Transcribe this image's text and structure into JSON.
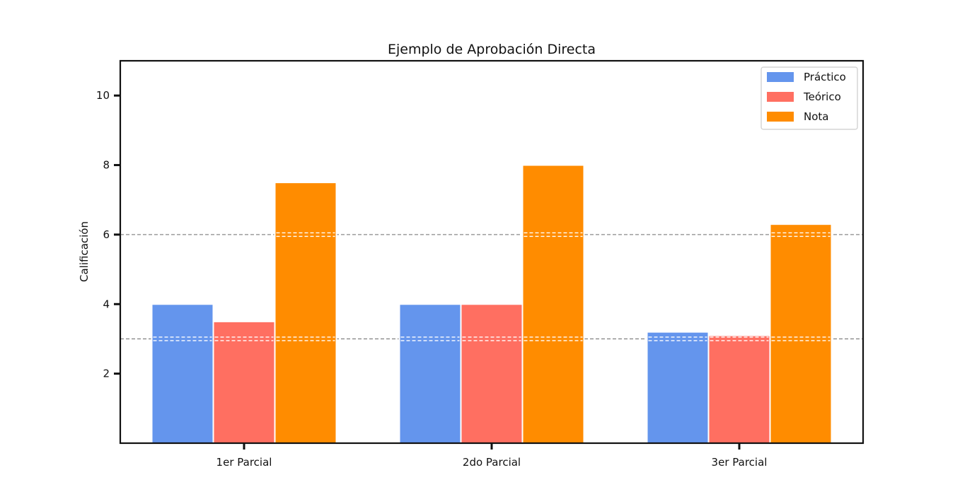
{
  "chart_data": {
    "type": "bar",
    "title": "Ejemplo de Aprobación Directa",
    "xlabel": "",
    "ylabel": "Calificación",
    "categories": [
      "1er Parcial",
      "2do Parcial",
      "3er Parcial"
    ],
    "series": [
      {
        "name": "Práctico",
        "color": "#6495ED",
        "values": [
          4.0,
          4.0,
          3.2
        ]
      },
      {
        "name": "Teórico",
        "color": "#FF6F61",
        "values": [
          3.5,
          4.0,
          3.1
        ]
      },
      {
        "name": "Nota",
        "color": "#FF8C00",
        "values": [
          7.5,
          8.0,
          6.3
        ]
      }
    ],
    "ylim": [
      0,
      11
    ],
    "yticks": [
      2,
      4,
      6,
      8,
      10
    ],
    "reference_lines": [
      3,
      6
    ],
    "reference_line_color": "#888888",
    "grid": false,
    "legend_position": "top-right"
  }
}
